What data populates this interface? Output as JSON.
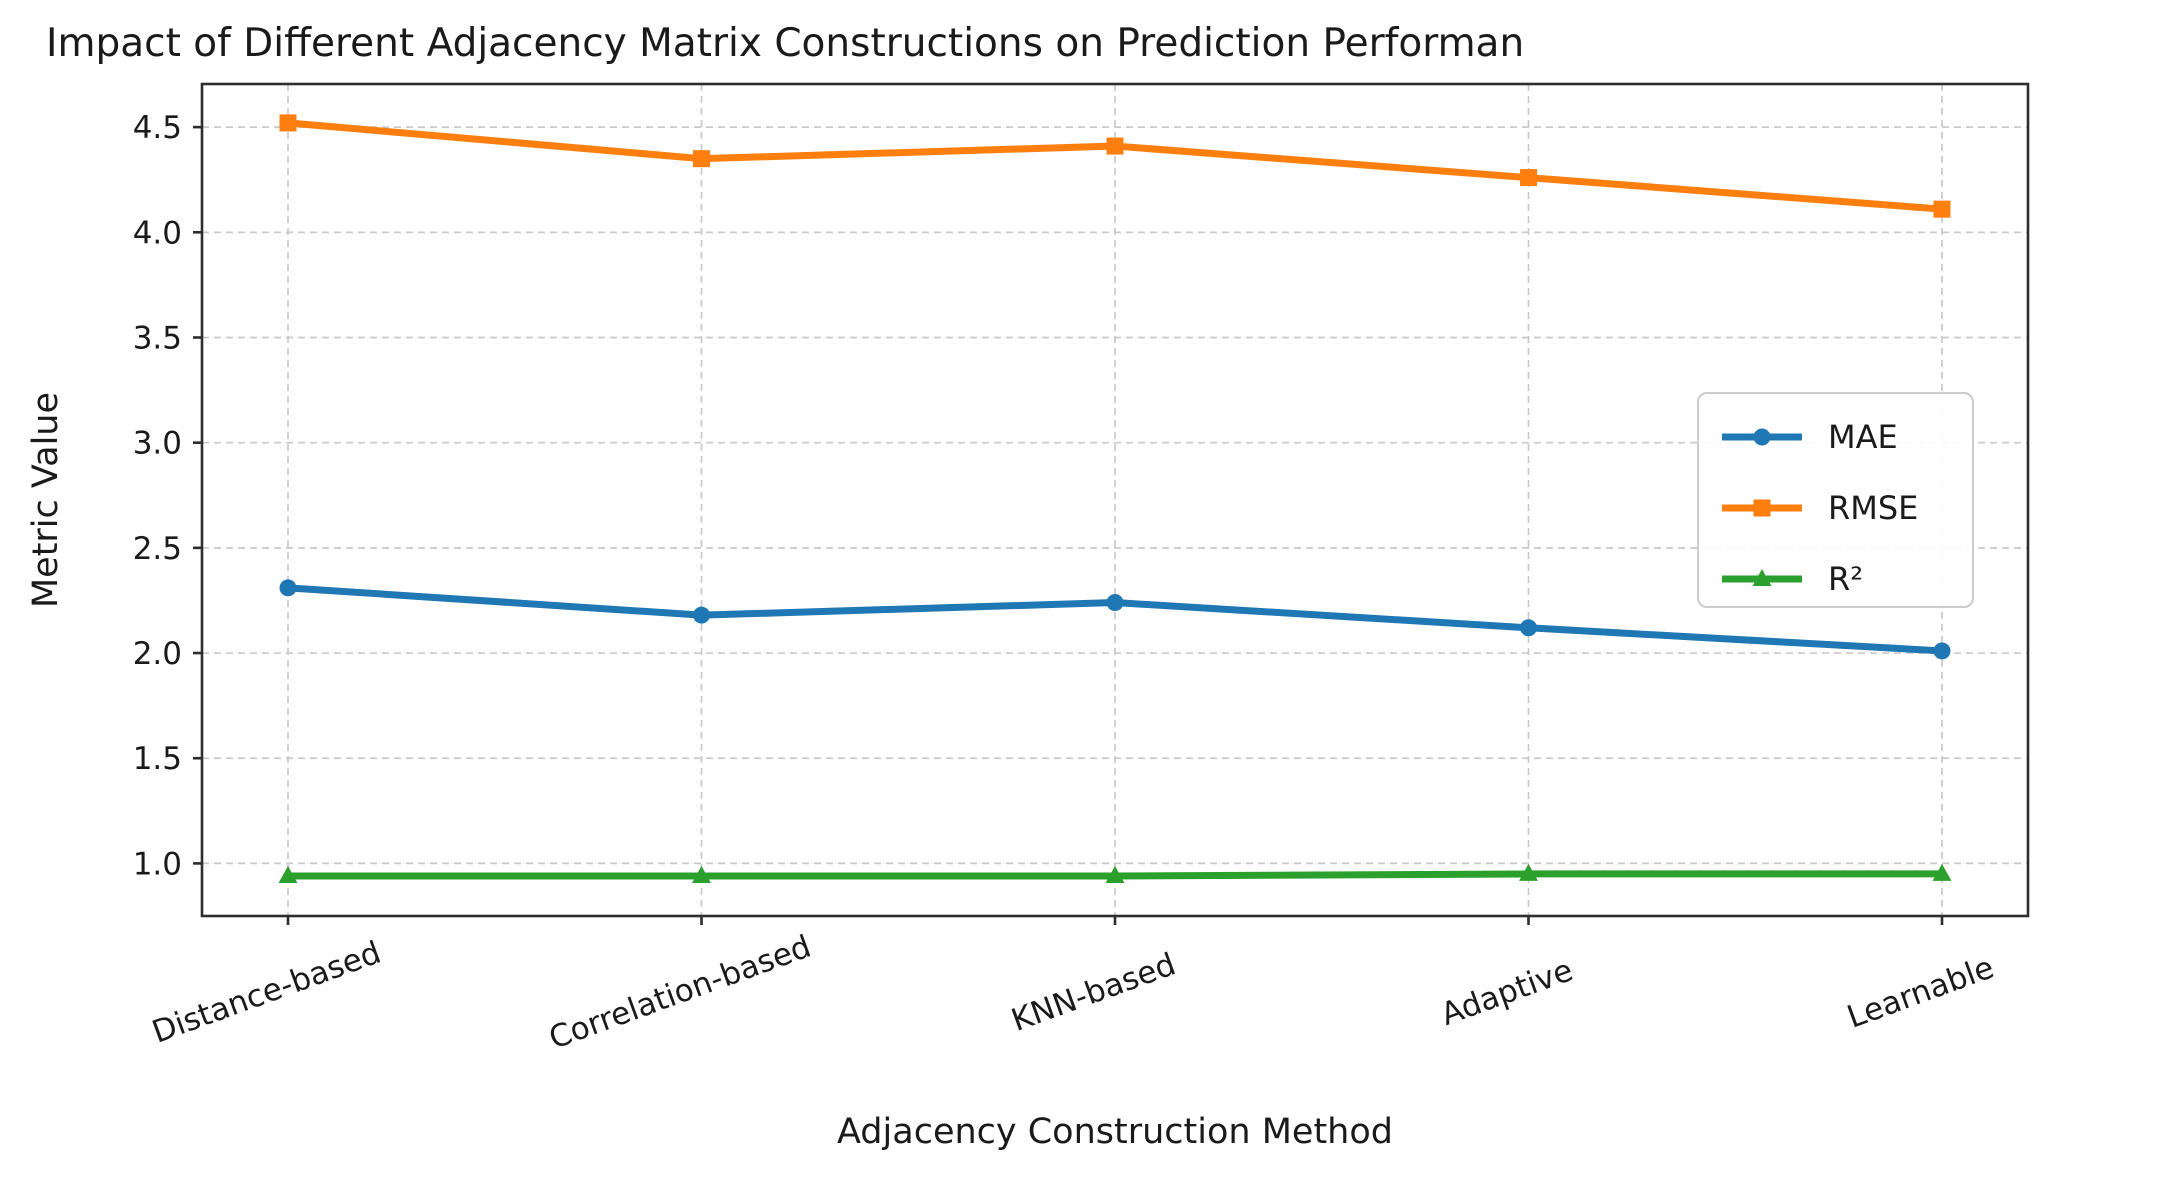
{
  "figure": {
    "title": "Impact of Different Adjacency Matrix Constructions on Prediction Performan",
    "background": "#ffffff",
    "text_color": "#1a1a1a",
    "spine_color": "#2d2d2d",
    "grid_color": "#c9c9c9"
  },
  "chart_data": {
    "type": "line",
    "title": "Impact of Different Adjacency Matrix Constructions on Prediction Performan",
    "xlabel": "Adjacency Construction Method",
    "ylabel": "Metric Value",
    "categories": [
      "Distance-based",
      "Correlation-based",
      "KNN-based",
      "Adaptive",
      "Learnable"
    ],
    "series": [
      {
        "name": "MAE",
        "color": "#1f77b4",
        "marker": "circle",
        "values": [
          2.31,
          2.18,
          2.24,
          2.12,
          2.01
        ]
      },
      {
        "name": "RMSE",
        "color": "#ff7f0e",
        "marker": "square",
        "values": [
          4.52,
          4.35,
          4.41,
          4.26,
          4.11
        ]
      },
      {
        "name": "R²",
        "color": "#2ca02c",
        "marker": "triangle",
        "values": [
          0.94,
          0.94,
          0.94,
          0.95,
          0.95
        ]
      }
    ],
    "y_ticks": [
      1.0,
      1.5,
      2.0,
      2.5,
      3.0,
      3.5,
      4.0,
      4.5
    ],
    "ylim": [
      0.75,
      4.705
    ],
    "grid": true,
    "grid_style": "dashed",
    "legend_position": "center right",
    "x_tick_rotation_deg": 20
  },
  "legend": {
    "items": [
      {
        "label": "MAE"
      },
      {
        "label": "RMSE"
      },
      {
        "label": "R²"
      }
    ]
  }
}
